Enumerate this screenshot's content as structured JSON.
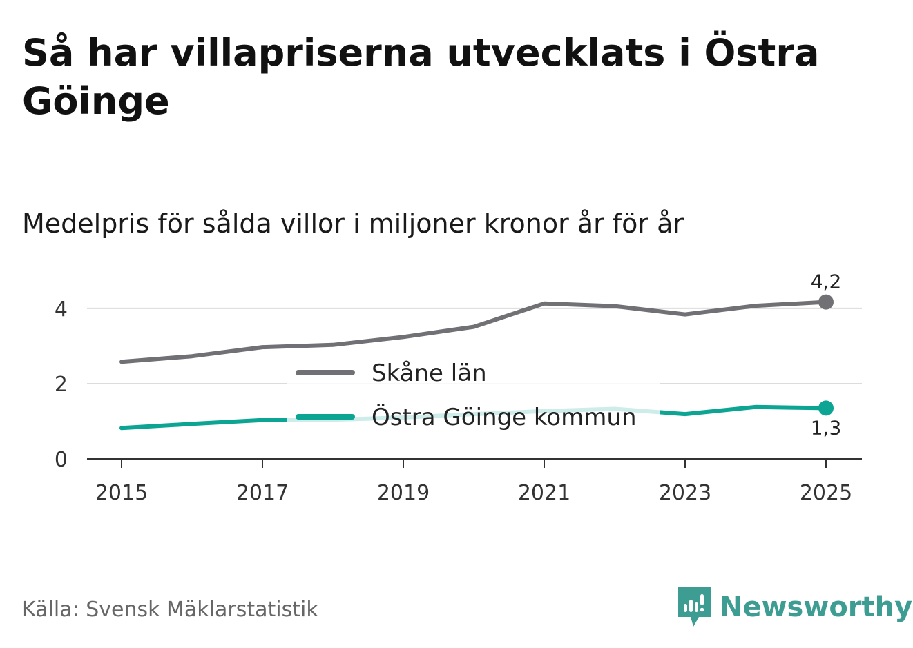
{
  "title": "Så har villapriserna utvecklats i Östra Göinge",
  "subtitle": "Medelpris för sålda villor i miljoner kronor år för år",
  "source": "Källa: Svensk Mäklarstatistik",
  "brand": {
    "name": "Newsworthy",
    "icon": "newsworthy-logo-icon",
    "color": "#3d9d92"
  },
  "chart_data": {
    "type": "line",
    "title": "Så har villapriserna utvecklats i Östra Göinge",
    "subtitle": "Medelpris för sålda villor i miljoner kronor år för år",
    "xlabel": "",
    "ylabel": "",
    "x": [
      2015,
      2016,
      2017,
      2018,
      2019,
      2020,
      2021,
      2022,
      2023,
      2024,
      2025
    ],
    "xticks": [
      "2015",
      "2017",
      "2019",
      "2021",
      "2023",
      "2025"
    ],
    "xlim": [
      2015,
      2025
    ],
    "ylim": [
      0,
      4.2
    ],
    "yticks": [
      "0",
      "2",
      "4"
    ],
    "grid": true,
    "legend_position": "center",
    "series": [
      {
        "name": "Skåne län",
        "color": "#707075",
        "values": [
          2.58,
          2.73,
          2.97,
          3.03,
          3.24,
          3.51,
          4.13,
          4.06,
          3.84,
          4.07,
          4.17
        ],
        "end_label": "4,2",
        "end_label_position": "above"
      },
      {
        "name": "Östra Göinge kommun",
        "color": "#0ca594",
        "values": [
          0.82,
          0.93,
          1.03,
          1.04,
          1.1,
          1.19,
          1.27,
          1.33,
          1.19,
          1.38,
          1.35
        ],
        "end_label": "1,3",
        "end_label_position": "below"
      }
    ]
  }
}
